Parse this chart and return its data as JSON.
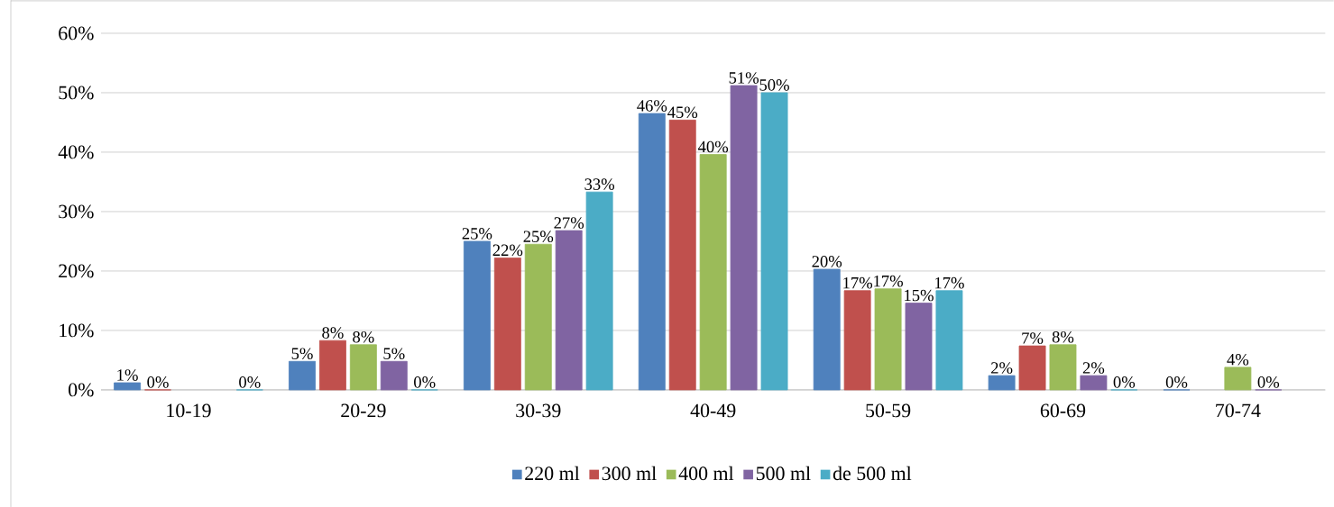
{
  "chart_data": {
    "type": "bar",
    "categories": [
      "10-19",
      "20-29",
      "30-39",
      "40-49",
      "50-59",
      "60-69",
      "70-74"
    ],
    "series": [
      {
        "name": "220 ml",
        "color": "#4f81bd",
        "values": [
          1.2,
          4.8,
          25,
          46.5,
          20.3,
          2.4,
          0
        ],
        "value_labels": [
          "1%",
          "5%",
          "25%",
          "46%",
          "20%",
          "2%",
          "0%"
        ]
      },
      {
        "name": "300 ml",
        "color": "#c0504d",
        "values": [
          0,
          8.3,
          22.2,
          45.4,
          16.7,
          7.4,
          null
        ],
        "value_labels": [
          "0%",
          "8%",
          "22%",
          "45%",
          "17%",
          "7%",
          null
        ]
      },
      {
        "name": "400 ml",
        "color": "#9bbb59",
        "values": [
          null,
          7.6,
          24.5,
          39.6,
          17.0,
          7.6,
          3.8
        ],
        "value_labels": [
          null,
          "8%",
          "25%",
          "40%",
          "17%",
          "8%",
          "4%"
        ]
      },
      {
        "name": "500 ml",
        "color": "#8064a2",
        "values": [
          null,
          4.8,
          26.8,
          51.2,
          14.6,
          2.4,
          0
        ],
        "value_labels": [
          null,
          "5%",
          "27%",
          "51%",
          "15%",
          "2%",
          "0%"
        ]
      },
      {
        "name": "de 500 ml",
        "color": "#4bacc6",
        "values": [
          0,
          0,
          33.3,
          50,
          16.7,
          0,
          null
        ],
        "value_labels": [
          "0%",
          "0%",
          "33%",
          "50%",
          "17%",
          "0%",
          null
        ]
      }
    ],
    "ylim": [
      0,
      60
    ],
    "yticks": [
      {
        "value": 0,
        "label": "0%"
      },
      {
        "value": 10,
        "label": "10%"
      },
      {
        "value": 20,
        "label": "20%"
      },
      {
        "value": 30,
        "label": "30%"
      },
      {
        "value": 40,
        "label": "40%"
      },
      {
        "value": 50,
        "label": "50%"
      },
      {
        "value": 60,
        "label": "60%"
      }
    ],
    "grid": "y",
    "legend": "bottom"
  }
}
